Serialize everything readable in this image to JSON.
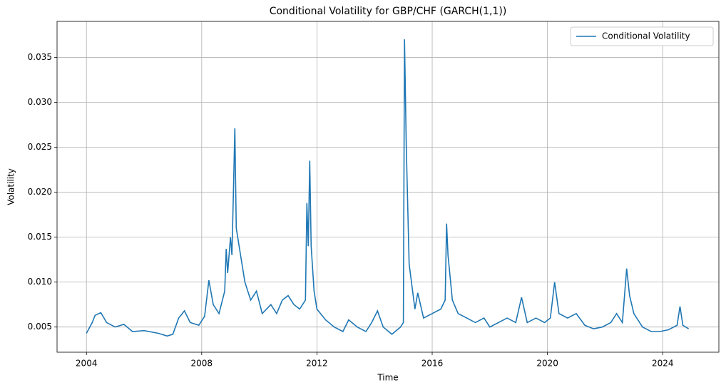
{
  "chart_data": {
    "type": "line",
    "title": "Conditional Volatility for GBP/CHF (GARCH(1,1))",
    "xlabel": "Time",
    "ylabel": "Volatility",
    "legend": "upper right",
    "grid": true,
    "xlim": [
      2002.98,
      2025.95
    ],
    "xticks": [
      2004,
      2008,
      2012,
      2016,
      2020,
      2024
    ],
    "ylim": [
      0.0022,
      0.039
    ],
    "yticks": [
      0.005,
      {
        "value": 0.01,
        "label": "0.010"
      },
      0.015,
      {
        "value": 0.02,
        "label": "0.020"
      },
      0.025,
      {
        "value": 0.03,
        "label": "0.030"
      },
      0.035
    ],
    "x": [
      2004.0,
      2004.2,
      2004.3,
      2004.5,
      2004.7,
      2005.0,
      2005.3,
      2005.6,
      2006.0,
      2006.5,
      2006.8,
      2007.0,
      2007.2,
      2007.4,
      2007.6,
      2007.9,
      2008.1,
      2008.25,
      2008.4,
      2008.6,
      2008.8,
      2008.85,
      2008.9,
      2009.0,
      2009.05,
      2009.1,
      2009.15,
      2009.2,
      2009.3,
      2009.5,
      2009.7,
      2009.9,
      2010.1,
      2010.4,
      2010.6,
      2010.8,
      2011.0,
      2011.2,
      2011.4,
      2011.6,
      2011.65,
      2011.7,
      2011.75,
      2011.8,
      2011.9,
      2012.0,
      2012.3,
      2012.6,
      2012.9,
      2013.1,
      2013.4,
      2013.7,
      2013.9,
      2014.1,
      2014.3,
      2014.6,
      2014.9,
      2015.0,
      2015.04,
      2015.1,
      2015.2,
      2015.4,
      2015.5,
      2015.7,
      2016.0,
      2016.3,
      2016.45,
      2016.5,
      2016.55,
      2016.7,
      2016.9,
      2017.2,
      2017.5,
      2017.8,
      2018.0,
      2018.3,
      2018.6,
      2018.9,
      2019.1,
      2019.3,
      2019.6,
      2019.9,
      2020.1,
      2020.25,
      2020.4,
      2020.7,
      2021.0,
      2021.3,
      2021.6,
      2021.9,
      2022.2,
      2022.4,
      2022.6,
      2022.75,
      2022.85,
      2023.0,
      2023.3,
      2023.6,
      2023.9,
      2024.2,
      2024.5,
      2024.6,
      2024.7,
      2024.9
    ],
    "series": [
      {
        "name": "Conditional Volatility",
        "color": "#1f77b4",
        "values": [
          0.0043,
          0.0055,
          0.0063,
          0.0066,
          0.0055,
          0.005,
          0.0053,
          0.0045,
          0.0046,
          0.0043,
          0.004,
          0.0042,
          0.006,
          0.0068,
          0.0055,
          0.0052,
          0.0062,
          0.0102,
          0.0075,
          0.0065,
          0.009,
          0.0137,
          0.011,
          0.015,
          0.013,
          0.02,
          0.0271,
          0.016,
          0.014,
          0.01,
          0.008,
          0.009,
          0.0065,
          0.0075,
          0.0065,
          0.008,
          0.0085,
          0.0075,
          0.007,
          0.008,
          0.0188,
          0.014,
          0.0235,
          0.014,
          0.009,
          0.007,
          0.0058,
          0.005,
          0.0045,
          0.0058,
          0.005,
          0.0045,
          0.0055,
          0.0068,
          0.005,
          0.0042,
          0.005,
          0.0055,
          0.037,
          0.025,
          0.012,
          0.007,
          0.0088,
          0.006,
          0.0065,
          0.007,
          0.008,
          0.0165,
          0.013,
          0.008,
          0.0065,
          0.006,
          0.0055,
          0.006,
          0.005,
          0.0055,
          0.006,
          0.0055,
          0.0083,
          0.0055,
          0.006,
          0.0055,
          0.006,
          0.01,
          0.0065,
          0.006,
          0.0065,
          0.0052,
          0.0048,
          0.005,
          0.0055,
          0.0065,
          0.0055,
          0.0115,
          0.0085,
          0.0065,
          0.005,
          0.0045,
          0.0045,
          0.0047,
          0.0052,
          0.0073,
          0.0052,
          0.0048
        ]
      }
    ]
  }
}
